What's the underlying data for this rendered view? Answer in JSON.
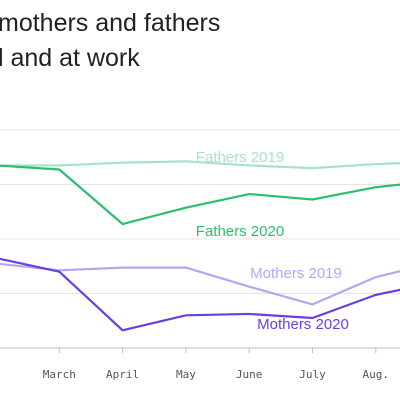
{
  "header": {
    "title_line_1": "mothers and fathers",
    "title_line_2": "l and at work"
  },
  "chart_data": {
    "type": "line",
    "categories": [
      ".",
      "March",
      "April",
      "May",
      "June",
      "July",
      "Aug."
    ],
    "ylim": [
      0,
      8
    ],
    "grid": true,
    "series": [
      {
        "name": "Fathers 2019",
        "color": "#a6e3c4",
        "values": [
          6.7,
          6.7,
          6.8,
          6.85,
          6.7,
          6.6,
          6.75
        ]
      },
      {
        "name": "Fathers 2020",
        "color": "#2bbf6f",
        "values": [
          6.7,
          6.55,
          4.55,
          5.15,
          5.65,
          5.45,
          5.9
        ]
      },
      {
        "name": "Mothers 2019",
        "color": "#b6a6f2",
        "values": [
          3.1,
          2.85,
          2.95,
          2.95,
          2.25,
          1.6,
          2.6
        ]
      },
      {
        "name": "Mothers 2020",
        "color": "#6a3fe0",
        "values": [
          3.3,
          2.8,
          0.65,
          1.2,
          1.25,
          1.1,
          1.95
        ]
      }
    ],
    "labels": [
      {
        "series": "Fathers 2019",
        "text": "Fathers 2019"
      },
      {
        "series": "Fathers 2020",
        "text": "Fathers 2020"
      },
      {
        "series": "Mothers 2019",
        "text": "Mothers 2019"
      },
      {
        "series": "Mothers 2020",
        "text": "Mothers 2020"
      }
    ]
  }
}
